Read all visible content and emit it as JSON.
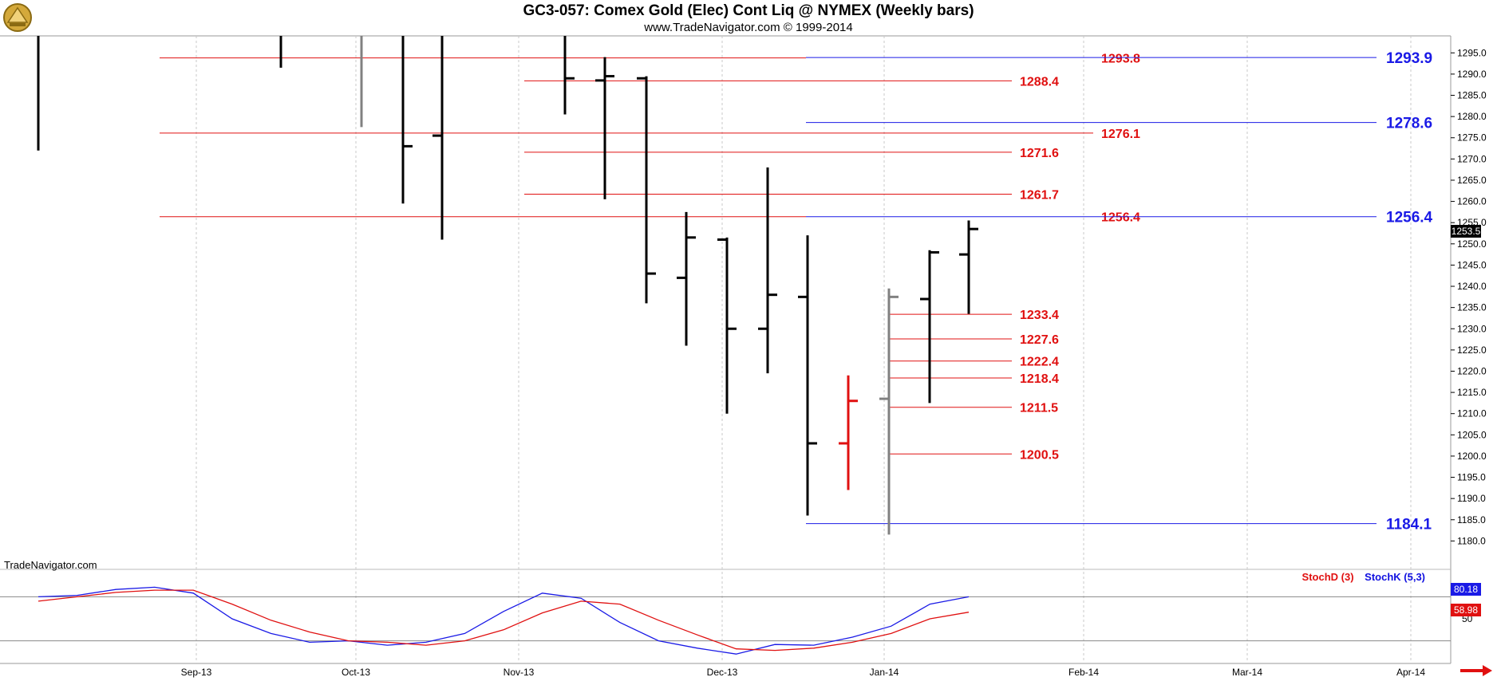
{
  "header": {
    "title": "GC3-057:  Comex Gold (Elec) Cont Liq @ NYMEX  (Weekly bars)",
    "subtitle": "www.TradeNavigator.com © 1999-2014"
  },
  "watermark": "TradeNavigator.com",
  "colors": {
    "up": "#000000",
    "down": "#e01010",
    "neutral": "#808080",
    "red_line": "#e01010",
    "blue_line": "#1a1ae6"
  },
  "chart_data": [
    {
      "type": "bar",
      "title": "GC3-057:  Comex Gold (Elec) Cont Liq @ NYMEX  (Weekly bars)",
      "ylim": [
        1175,
        1299
      ],
      "y_ticks": [
        1180.0,
        1185.0,
        1190.0,
        1195.0,
        1200.0,
        1205.0,
        1210.0,
        1215.0,
        1220.0,
        1225.0,
        1230.0,
        1235.0,
        1240.0,
        1245.0,
        1250.0,
        1255.0,
        1260.0,
        1265.0,
        1270.0,
        1275.0,
        1280.0,
        1285.0,
        1290.0,
        1295.0
      ],
      "x_ticks": [
        "Sep-13",
        "Oct-13",
        "Nov-13",
        "Dec-13",
        "Jan-14",
        "Feb-14",
        "Mar-14",
        "Apr-14"
      ],
      "last_price": "1253.5",
      "bars": [
        {
          "date": "Aug-13 w2",
          "high": 1299,
          "low": 1272.0,
          "open": null,
          "close": null,
          "color": "black"
        },
        {
          "date": "Sep-13 w3",
          "high": 1299,
          "low": 1291.5,
          "open": null,
          "close": null,
          "color": "black"
        },
        {
          "date": "Sep-13 w5",
          "high": 1299,
          "low": 1277.5,
          "open": null,
          "close": null,
          "color": "gray"
        },
        {
          "date": "Oct-13 w2",
          "high": 1299,
          "low": 1259.5,
          "open": null,
          "close": 1273.0,
          "color": "black"
        },
        {
          "date": "Oct-13 w3",
          "high": 1299,
          "low": 1251.0,
          "open": 1275.5,
          "close": null,
          "color": "black"
        },
        {
          "date": "Nov-13 w2",
          "high": 1299,
          "low": 1280.5,
          "open": null,
          "close": 1289.0,
          "color": "black"
        },
        {
          "date": "Nov-13 w3",
          "high": 1294.0,
          "low": 1260.5,
          "open": 1288.5,
          "close": 1289.5,
          "color": "black"
        },
        {
          "date": "Nov-13 w4",
          "high": 1289.5,
          "low": 1236.0,
          "open": 1289.0,
          "close": 1243.0,
          "color": "black"
        },
        {
          "date": "Dec-13 w1",
          "high": 1257.5,
          "low": 1226.0,
          "open": 1242.0,
          "close": 1251.5,
          "color": "black"
        },
        {
          "date": "Dec-13 w2",
          "high": 1251.5,
          "low": 1210.0,
          "open": 1251.0,
          "close": 1230.0,
          "color": "black"
        },
        {
          "date": "Dec-13 w3",
          "high": 1268.0,
          "low": 1219.5,
          "open": 1230.0,
          "close": 1238.0,
          "color": "black"
        },
        {
          "date": "Dec-13 w4",
          "high": 1252.0,
          "low": 1186.0,
          "open": 1237.5,
          "close": 1203.0,
          "color": "black"
        },
        {
          "date": "Dec-13 w5",
          "high": 1219.0,
          "low": 1192.0,
          "open": 1203.0,
          "close": 1213.0,
          "color": "red"
        },
        {
          "date": "Jan-14 w1",
          "high": 1239.5,
          "low": 1181.5,
          "open": 1213.5,
          "close": 1237.5,
          "color": "gray"
        },
        {
          "date": "Jan-14 w2",
          "high": 1248.5,
          "low": 1212.5,
          "open": 1237.0,
          "close": 1248.0,
          "color": "black"
        },
        {
          "date": "Jan-14 w3",
          "high": 1255.5,
          "low": 1233.5,
          "open": 1247.5,
          "close": 1253.5,
          "color": "black"
        }
      ],
      "levels_red": [
        "1293.8",
        "1288.4",
        "1276.1",
        "1271.6",
        "1261.7",
        "1256.4",
        "1233.4",
        "1227.6",
        "1222.4",
        "1218.4",
        "1211.5",
        "1200.5"
      ],
      "levels_blue": [
        "1293.9",
        "1278.6",
        "1256.4",
        "1184.1"
      ],
      "level_values": {
        "1293.8": 1293.8,
        "1288.4": 1288.4,
        "1276.1": 1276.1,
        "1271.6": 1271.6,
        "1261.7": 1261.7,
        "1256.4": 1256.4,
        "1233.4": 1233.4,
        "1227.6": 1227.6,
        "1222.4": 1222.4,
        "1218.4": 1218.4,
        "1211.5": 1211.5,
        "1200.5": 1200.5,
        "1293.9": 1293.9,
        "1278.6": 1278.6,
        "1184.1": 1184.1
      }
    },
    {
      "type": "line",
      "legend": [
        "StochD (3)",
        "StochK (5,3)"
      ],
      "y_tick": "50",
      "ylim": [
        0,
        100
      ],
      "series": [
        {
          "name": "StochK (5,3)",
          "color": "#1a1ae6",
          "last_value": "80.18",
          "values": [
            80,
            82,
            90,
            93,
            85,
            50,
            30,
            18,
            20,
            14,
            18,
            30,
            60,
            85,
            78,
            45,
            20,
            10,
            2,
            15,
            14,
            25,
            40,
            70,
            80
          ]
        },
        {
          "name": "StochD (3)",
          "color": "#e01010",
          "last_value": "58.98",
          "values": [
            74,
            80,
            86,
            89,
            89,
            70,
            48,
            32,
            20,
            18,
            14,
            20,
            35,
            58,
            74,
            70,
            48,
            28,
            9,
            7,
            10,
            18,
            30,
            50,
            59
          ]
        }
      ]
    }
  ]
}
